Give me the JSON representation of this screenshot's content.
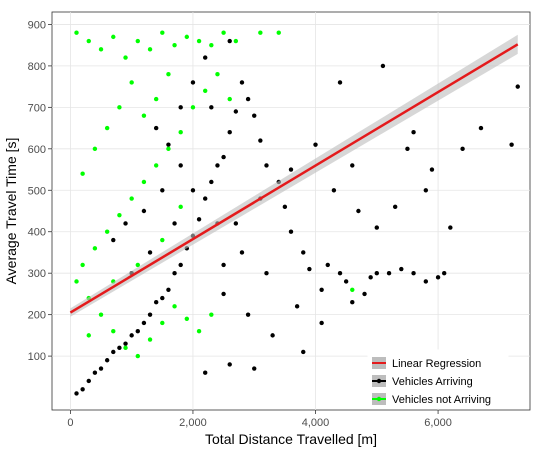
{
  "chart_data": {
    "type": "scatter",
    "xlabel": "Total Distance Travelled [m]",
    "ylabel": "Average Travel Time [s]",
    "xlim": [
      -300,
      7500
    ],
    "ylim": [
      -30,
      930
    ],
    "x_ticks": [
      0,
      2000,
      4000,
      6000
    ],
    "x_tick_labels": [
      "0",
      "2,000",
      "4,000",
      "6,000"
    ],
    "y_ticks": [
      100,
      200,
      300,
      400,
      500,
      600,
      700,
      800,
      900
    ],
    "y_tick_labels": [
      "100",
      "200",
      "300",
      "400",
      "500",
      "600",
      "700",
      "800",
      "900"
    ],
    "grid": true,
    "legend_position": "bottom-right",
    "legend": [
      "Linear Regression",
      "Vehicles Arriving",
      "Vehicles not Arriving"
    ],
    "colors": {
      "regression": "#e41a1c",
      "confidence_band": "#bdbdbd",
      "arriving": "#000000",
      "not_arriving": "#00ff00"
    },
    "series": [
      {
        "name": "Vehicles Arriving",
        "points": [
          [
            5100,
            800
          ],
          [
            7300,
            750
          ],
          [
            6700,
            650
          ],
          [
            6400,
            600
          ],
          [
            7200,
            610
          ],
          [
            4400,
            760
          ],
          [
            5600,
            640
          ],
          [
            5500,
            600
          ],
          [
            5900,
            550
          ],
          [
            5000,
            410
          ],
          [
            6200,
            410
          ],
          [
            6100,
            300
          ],
          [
            6000,
            290
          ],
          [
            5800,
            280
          ],
          [
            5600,
            300
          ],
          [
            5400,
            310
          ],
          [
            5200,
            300
          ],
          [
            5000,
            300
          ],
          [
            4900,
            290
          ],
          [
            4800,
            250
          ],
          [
            4600,
            230
          ],
          [
            4500,
            280
          ],
          [
            4400,
            300
          ],
          [
            4200,
            320
          ],
          [
            4100,
            260
          ],
          [
            3900,
            310
          ],
          [
            3800,
            350
          ],
          [
            3600,
            400
          ],
          [
            3500,
            460
          ],
          [
            3400,
            520
          ],
          [
            3200,
            560
          ],
          [
            3100,
            620
          ],
          [
            3000,
            680
          ],
          [
            2900,
            720
          ],
          [
            2800,
            760
          ],
          [
            2700,
            690
          ],
          [
            2600,
            640
          ],
          [
            2500,
            580
          ],
          [
            2400,
            560
          ],
          [
            2300,
            520
          ],
          [
            2200,
            480
          ],
          [
            2100,
            430
          ],
          [
            2000,
            390
          ],
          [
            1900,
            360
          ],
          [
            1800,
            320
          ],
          [
            1700,
            300
          ],
          [
            1600,
            260
          ],
          [
            1500,
            240
          ],
          [
            1400,
            230
          ],
          [
            1300,
            200
          ],
          [
            1200,
            180
          ],
          [
            1100,
            160
          ],
          [
            1000,
            150
          ],
          [
            900,
            130
          ],
          [
            800,
            120
          ],
          [
            700,
            110
          ],
          [
            600,
            90
          ],
          [
            500,
            70
          ],
          [
            400,
            60
          ],
          [
            300,
            40
          ],
          [
            200,
            20
          ],
          [
            100,
            10
          ],
          [
            3800,
            110
          ],
          [
            3000,
            70
          ],
          [
            2600,
            80
          ],
          [
            2200,
            60
          ],
          [
            3300,
            150
          ],
          [
            2900,
            200
          ],
          [
            2500,
            250
          ],
          [
            3700,
            220
          ],
          [
            4100,
            180
          ],
          [
            3200,
            300
          ],
          [
            2800,
            350
          ],
          [
            2400,
            420
          ],
          [
            2000,
            500
          ],
          [
            1800,
            560
          ],
          [
            1600,
            610
          ],
          [
            1400,
            650
          ],
          [
            2300,
            700
          ],
          [
            2600,
            860
          ],
          [
            2200,
            820
          ],
          [
            2000,
            760
          ],
          [
            1800,
            700
          ],
          [
            1500,
            500
          ],
          [
            1200,
            450
          ],
          [
            900,
            420
          ],
          [
            700,
            380
          ],
          [
            1000,
            300
          ],
          [
            1300,
            350
          ],
          [
            1700,
            420
          ],
          [
            2500,
            320
          ],
          [
            2700,
            420
          ],
          [
            3100,
            480
          ],
          [
            3600,
            550
          ],
          [
            4000,
            610
          ],
          [
            4300,
            500
          ],
          [
            4600,
            560
          ],
          [
            4700,
            450
          ],
          [
            5300,
            460
          ],
          [
            5800,
            500
          ]
        ]
      },
      {
        "name": "Vehicles not Arriving",
        "points": [
          [
            100,
            880
          ],
          [
            300,
            860
          ],
          [
            500,
            840
          ],
          [
            700,
            870
          ],
          [
            900,
            820
          ],
          [
            1100,
            860
          ],
          [
            1300,
            840
          ],
          [
            1500,
            880
          ],
          [
            1700,
            850
          ],
          [
            1900,
            870
          ],
          [
            2100,
            860
          ],
          [
            2300,
            850
          ],
          [
            2500,
            880
          ],
          [
            2700,
            860
          ],
          [
            3100,
            880
          ],
          [
            3400,
            880
          ],
          [
            2400,
            780
          ],
          [
            2200,
            740
          ],
          [
            2000,
            700
          ],
          [
            1800,
            640
          ],
          [
            1600,
            600
          ],
          [
            1400,
            560
          ],
          [
            1200,
            520
          ],
          [
            1000,
            480
          ],
          [
            800,
            440
          ],
          [
            600,
            400
          ],
          [
            400,
            360
          ],
          [
            200,
            320
          ],
          [
            100,
            280
          ],
          [
            300,
            240
          ],
          [
            500,
            200
          ],
          [
            700,
            160
          ],
          [
            900,
            120
          ],
          [
            1100,
            100
          ],
          [
            1300,
            140
          ],
          [
            1500,
            180
          ],
          [
            1700,
            220
          ],
          [
            1900,
            190
          ],
          [
            2100,
            160
          ],
          [
            2300,
            200
          ],
          [
            1000,
            760
          ],
          [
            800,
            700
          ],
          [
            600,
            650
          ],
          [
            400,
            600
          ],
          [
            200,
            540
          ],
          [
            1200,
            680
          ],
          [
            1400,
            720
          ],
          [
            1600,
            780
          ],
          [
            2600,
            720
          ],
          [
            4600,
            260
          ],
          [
            1800,
            460
          ],
          [
            1500,
            380
          ],
          [
            1100,
            320
          ],
          [
            700,
            280
          ],
          [
            300,
            150
          ]
        ]
      }
    ],
    "regression": {
      "name": "Linear Regression",
      "x": [
        0,
        7300
      ],
      "y": [
        205,
        852
      ],
      "ci_upper": [
        215,
        875
      ],
      "ci_lower": [
        195,
        829
      ]
    }
  }
}
